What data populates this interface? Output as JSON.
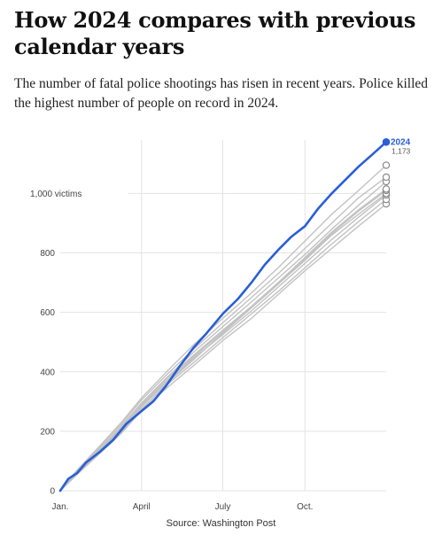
{
  "header": {
    "title": "How 2024 compares with previous calendar years",
    "subtitle": "The number of fatal police shootings has risen in recent years. Police killed the highest number of people on record in 2024."
  },
  "source": "Source: Washington Post",
  "colors": {
    "highlight": "#2a5fd6",
    "others": "#c2c2c2",
    "grid": "#e3e3e3",
    "marker": "#8a8a8a"
  },
  "chart_data": {
    "type": "line",
    "x_unit": "day of year",
    "xlim": [
      1,
      366
    ],
    "ylim": [
      0,
      1180
    ],
    "grid": true,
    "x_ticks": [
      {
        "value": 1,
        "label": "Jan."
      },
      {
        "value": 92,
        "label": "April"
      },
      {
        "value": 183,
        "label": "July"
      },
      {
        "value": 275,
        "label": "Oct."
      }
    ],
    "y_ticks": [
      {
        "value": 0,
        "label": "0"
      },
      {
        "value": 200,
        "label": "200"
      },
      {
        "value": 400,
        "label": "400"
      },
      {
        "value": 600,
        "label": "600"
      },
      {
        "value": 800,
        "label": "800"
      },
      {
        "value": 1000,
        "label": "1,000 victims"
      }
    ],
    "highlight": {
      "name": "2024",
      "end_value_label": "1,173",
      "points": [
        [
          1,
          0
        ],
        [
          10,
          40
        ],
        [
          20,
          60
        ],
        [
          30,
          95
        ],
        [
          45,
          130
        ],
        [
          60,
          170
        ],
        [
          75,
          225
        ],
        [
          92,
          268
        ],
        [
          105,
          300
        ],
        [
          120,
          355
        ],
        [
          135,
          420
        ],
        [
          150,
          480
        ],
        [
          165,
          530
        ],
        [
          183,
          595
        ],
        [
          200,
          645
        ],
        [
          215,
          700
        ],
        [
          230,
          760
        ],
        [
          245,
          810
        ],
        [
          260,
          855
        ],
        [
          275,
          890
        ],
        [
          290,
          950
        ],
        [
          305,
          1000
        ],
        [
          320,
          1045
        ],
        [
          335,
          1090
        ],
        [
          350,
          1130
        ],
        [
          366,
          1173
        ]
      ]
    },
    "others": [
      {
        "points": [
          [
            1,
            0
          ],
          [
            20,
            55
          ],
          [
            45,
            125
          ],
          [
            70,
            195
          ],
          [
            92,
            270
          ],
          [
            120,
            345
          ],
          [
            150,
            420
          ],
          [
            183,
            505
          ],
          [
            215,
            580
          ],
          [
            245,
            660
          ],
          [
            275,
            740
          ],
          [
            305,
            815
          ],
          [
            335,
            890
          ],
          [
            366,
            965
          ]
        ]
      },
      {
        "points": [
          [
            1,
            0
          ],
          [
            20,
            60
          ],
          [
            45,
            130
          ],
          [
            70,
            205
          ],
          [
            92,
            275
          ],
          [
            120,
            355
          ],
          [
            150,
            430
          ],
          [
            183,
            515
          ],
          [
            215,
            595
          ],
          [
            245,
            670
          ],
          [
            275,
            750
          ],
          [
            305,
            830
          ],
          [
            335,
            905
          ],
          [
            366,
            980
          ]
        ]
      },
      {
        "points": [
          [
            1,
            0
          ],
          [
            20,
            62
          ],
          [
            45,
            135
          ],
          [
            70,
            210
          ],
          [
            92,
            282
          ],
          [
            120,
            365
          ],
          [
            150,
            445
          ],
          [
            183,
            525
          ],
          [
            215,
            605
          ],
          [
            245,
            685
          ],
          [
            275,
            765
          ],
          [
            305,
            845
          ],
          [
            335,
            920
          ],
          [
            366,
            995
          ]
        ]
      },
      {
        "points": [
          [
            1,
            0
          ],
          [
            20,
            58
          ],
          [
            45,
            128
          ],
          [
            70,
            200
          ],
          [
            92,
            272
          ],
          [
            120,
            360
          ],
          [
            150,
            440
          ],
          [
            183,
            530
          ],
          [
            215,
            615
          ],
          [
            245,
            695
          ],
          [
            275,
            775
          ],
          [
            305,
            860
          ],
          [
            335,
            930
          ],
          [
            366,
            1000
          ]
        ]
      },
      {
        "points": [
          [
            1,
            0
          ],
          [
            20,
            65
          ],
          [
            45,
            140
          ],
          [
            70,
            215
          ],
          [
            92,
            290
          ],
          [
            120,
            375
          ],
          [
            150,
            455
          ],
          [
            183,
            540
          ],
          [
            215,
            620
          ],
          [
            245,
            700
          ],
          [
            275,
            780
          ],
          [
            305,
            865
          ],
          [
            335,
            940
          ],
          [
            366,
            1010
          ]
        ]
      },
      {
        "points": [
          [
            1,
            0
          ],
          [
            20,
            63
          ],
          [
            45,
            138
          ],
          [
            70,
            218
          ],
          [
            92,
            295
          ],
          [
            120,
            380
          ],
          [
            150,
            465
          ],
          [
            183,
            552
          ],
          [
            215,
            635
          ],
          [
            245,
            715
          ],
          [
            275,
            795
          ],
          [
            305,
            880
          ],
          [
            335,
            960
          ],
          [
            366,
            1040
          ]
        ]
      },
      {
        "points": [
          [
            1,
            0
          ],
          [
            20,
            66
          ],
          [
            45,
            145
          ],
          [
            70,
            225
          ],
          [
            92,
            305
          ],
          [
            120,
            390
          ],
          [
            150,
            475
          ],
          [
            183,
            565
          ],
          [
            215,
            650
          ],
          [
            245,
            730
          ],
          [
            275,
            815
          ],
          [
            305,
            900
          ],
          [
            335,
            985
          ],
          [
            366,
            1055
          ]
        ]
      },
      {
        "points": [
          [
            1,
            0
          ],
          [
            20,
            70
          ],
          [
            45,
            150
          ],
          [
            70,
            232
          ],
          [
            92,
            312
          ],
          [
            120,
            400
          ],
          [
            150,
            490
          ],
          [
            183,
            580
          ],
          [
            215,
            665
          ],
          [
            245,
            750
          ],
          [
            275,
            840
          ],
          [
            305,
            930
          ],
          [
            335,
            1010
          ],
          [
            366,
            1095
          ]
        ]
      },
      {
        "points": [
          [
            1,
            0
          ],
          [
            20,
            60
          ],
          [
            45,
            132
          ],
          [
            70,
            208
          ],
          [
            92,
            285
          ],
          [
            120,
            368
          ],
          [
            150,
            450
          ],
          [
            183,
            535
          ],
          [
            215,
            618
          ],
          [
            245,
            700
          ],
          [
            275,
            785
          ],
          [
            305,
            870
          ],
          [
            335,
            945
          ],
          [
            366,
            1015
          ]
        ]
      }
    ]
  }
}
